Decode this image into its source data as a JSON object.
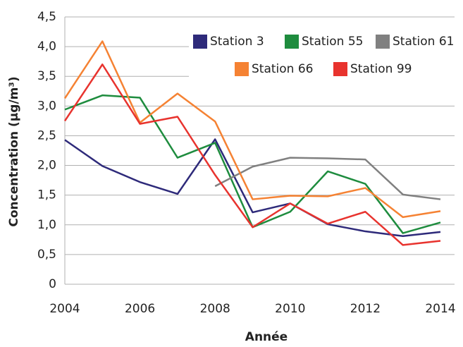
{
  "chart_data": {
    "type": "line",
    "x_label": "Année",
    "y_label": "Concentration (µg/m³)",
    "x": [
      2004,
      2005,
      2006,
      2007,
      2008,
      2009,
      2010,
      2011,
      2012,
      2013,
      2014
    ],
    "xlim": [
      2004,
      2014
    ],
    "xticks": [
      2004,
      2006,
      2008,
      2010,
      2012,
      2014
    ],
    "ylim": [
      0,
      4.5
    ],
    "yticks": [
      0,
      {
        "value": 0.5,
        "label": "0,5"
      },
      {
        "value": 1,
        "label": "1,0"
      },
      {
        "value": 1.5,
        "label": "1,5"
      },
      {
        "value": 2,
        "label": "2,0"
      },
      {
        "value": 2.5,
        "label": "2,5"
      },
      {
        "value": 3,
        "label": "3,0"
      },
      {
        "value": 3.5,
        "label": "3,5"
      },
      {
        "value": 4,
        "label": "4,0"
      },
      {
        "value": 4.5,
        "label": "4,5"
      }
    ],
    "grid": true,
    "series": [
      {
        "name": "Station 3",
        "color": "#2e2a7a",
        "values": [
          2.43,
          1.99,
          1.72,
          1.52,
          2.44,
          1.21,
          1.36,
          1.01,
          0.89,
          0.81,
          0.88
        ]
      },
      {
        "name": "Station 55",
        "color": "#1e8c3e",
        "values": [
          2.94,
          3.18,
          3.14,
          2.13,
          2.38,
          0.96,
          1.22,
          1.9,
          1.69,
          0.86,
          1.04
        ]
      },
      {
        "name": "Station 61",
        "color": "#808080",
        "values": [
          null,
          null,
          null,
          null,
          1.65,
          1.98,
          2.13,
          2.12,
          2.1,
          1.51,
          1.43
        ]
      },
      {
        "name": "Station 66",
        "color": "#f58233",
        "values": [
          3.13,
          4.09,
          2.72,
          3.21,
          2.74,
          1.43,
          1.49,
          1.48,
          1.62,
          1.13,
          1.23
        ]
      },
      {
        "name": "Station 99",
        "color": "#e8332e",
        "values": [
          2.75,
          3.7,
          2.7,
          2.82,
          1.84,
          0.96,
          1.36,
          1.02,
          1.22,
          0.66,
          0.73
        ]
      }
    ]
  }
}
